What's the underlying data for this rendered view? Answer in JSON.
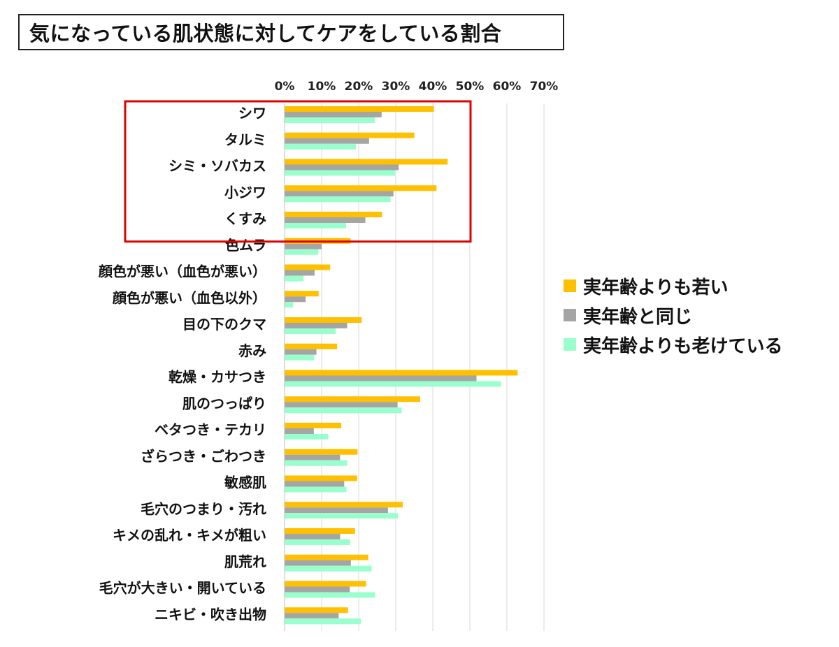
{
  "chart_data": {
    "type": "bar",
    "orientation": "horizontal",
    "title": "気になっている肌状態に対してケアをしている割合",
    "xlim": [
      0,
      70
    ],
    "x_ticks": [
      "0%",
      "10%",
      "20%",
      "30%",
      "40%",
      "50%",
      "60%",
      "70%"
    ],
    "grid": "vertical",
    "legend_position": "right",
    "highlight_box_categories": [
      "シワ",
      "タルミ",
      "シミ・ソバカス",
      "小ジワ",
      "くすみ"
    ],
    "highlight_color": "#e00000",
    "categories": [
      "シワ",
      "タルミ",
      "シミ・ソバカス",
      "小ジワ",
      "くすみ",
      "色ムラ",
      "顔色が悪い（血色が悪い）",
      "顔色が悪い（血色以外）",
      "目の下のクマ",
      "赤み",
      "乾燥・カサつき",
      "肌のつっぱり",
      "ベタつき・テカリ",
      "ざらつき・ごわつき",
      "敏感肌",
      "毛穴のつまり・汚れ",
      "キメの乱れ・キメが粗い",
      "肌荒れ",
      "毛穴が大きい・開いている",
      "ニキビ・吹き出物"
    ],
    "series": [
      {
        "name": "実年齢よりも若い",
        "color": "#ffc000",
        "values": [
          40.3,
          35.0,
          44.0,
          41.0,
          26.3,
          17.8,
          12.3,
          9.2,
          20.8,
          14.2,
          62.9,
          36.6,
          15.3,
          19.7,
          19.6,
          31.9,
          19.0,
          22.6,
          22.0,
          17.1
        ]
      },
      {
        "name": "実年齢と同じ",
        "color": "#a5a5a5",
        "values": [
          26.2,
          22.8,
          30.8,
          29.4,
          21.8,
          10.0,
          8.1,
          5.7,
          16.9,
          8.6,
          51.8,
          30.5,
          7.9,
          15.0,
          16.1,
          27.9,
          15.0,
          17.9,
          17.6,
          14.6
        ]
      },
      {
        "name": "実年齢よりも老けている",
        "color": "#99ffcc",
        "values": [
          24.4,
          19.3,
          29.8,
          28.6,
          16.6,
          9.1,
          5.1,
          2.3,
          13.8,
          8.0,
          58.4,
          31.6,
          11.8,
          16.9,
          16.7,
          30.6,
          17.7,
          23.5,
          24.4,
          20.6
        ]
      }
    ]
  }
}
